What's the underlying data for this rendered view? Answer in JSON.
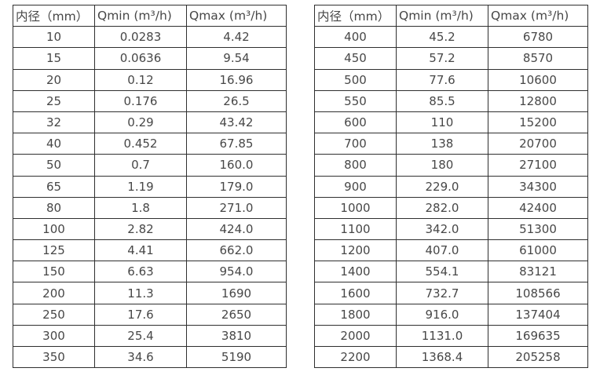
{
  "colors": {
    "background": "#ffffff",
    "border": "#2f2f2f",
    "text": "#474747"
  },
  "tables": [
    {
      "headers": [
        "内径（mm）",
        "Qmin (m³/h)",
        "Qmax (m³/h)"
      ],
      "rows": [
        [
          "10",
          "0.0283",
          "4.42"
        ],
        [
          "15",
          "0.0636",
          "9.54"
        ],
        [
          "20",
          "0.12",
          "16.96"
        ],
        [
          "25",
          "0.176",
          "26.5"
        ],
        [
          "32",
          "0.29",
          "43.42"
        ],
        [
          "40",
          "0.452",
          "67.85"
        ],
        [
          "50",
          "0.7",
          "160.0"
        ],
        [
          "65",
          "1.19",
          "179.0"
        ],
        [
          "80",
          "1.8",
          "271.0"
        ],
        [
          "100",
          "2.82",
          "424.0"
        ],
        [
          "125",
          "4.41",
          "662.0"
        ],
        [
          "150",
          "6.63",
          "954.0"
        ],
        [
          "200",
          "11.3",
          "1690"
        ],
        [
          "250",
          "17.6",
          "2650"
        ],
        [
          "300",
          "25.4",
          "3810"
        ],
        [
          "350",
          "34.6",
          "5190"
        ]
      ]
    },
    {
      "headers": [
        "内径（mm）",
        "Qmin (m³/h)",
        "Qmax (m³/h)"
      ],
      "rows": [
        [
          "400",
          "45.2",
          "6780"
        ],
        [
          "450",
          "57.2",
          "8570"
        ],
        [
          "500",
          "77.6",
          "10600"
        ],
        [
          "550",
          "85.5",
          "12800"
        ],
        [
          "600",
          "110",
          "15200"
        ],
        [
          "700",
          "138",
          "20700"
        ],
        [
          "800",
          "180",
          "27100"
        ],
        [
          "900",
          "229.0",
          "34300"
        ],
        [
          "1000",
          "282.0",
          "42400"
        ],
        [
          "1100",
          "342.0",
          "51300"
        ],
        [
          "1200",
          "407.0",
          "61000"
        ],
        [
          "1400",
          "554.1",
          "83121"
        ],
        [
          "1600",
          "732.7",
          "108566"
        ],
        [
          "1800",
          "916.0",
          "137404"
        ],
        [
          "2000",
          "1131.0",
          "169635"
        ],
        [
          "2200",
          "1368.4",
          "205258"
        ]
      ]
    }
  ]
}
